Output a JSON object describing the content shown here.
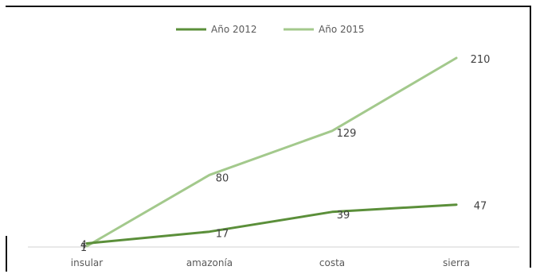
{
  "colors": {
    "series_2012": "#5b8f3a",
    "series_2015": "#a3c98c",
    "axis": "#d0d0d0",
    "text": "#595959",
    "ghost_text": "#cfd6cf"
  },
  "chart_data": {
    "type": "line",
    "title": "",
    "xlabel": "",
    "ylabel": "",
    "categories": [
      "insular",
      "amazonía",
      "costa",
      "sierra"
    ],
    "series": [
      {
        "name": "Año 2012",
        "values": [
          4,
          17,
          39,
          47
        ]
      },
      {
        "name": "Año 2015",
        "values": [
          1,
          80,
          129,
          210
        ]
      }
    ],
    "ylim": [
      0,
      240
    ],
    "grid": false,
    "legend_position": "top-center"
  }
}
